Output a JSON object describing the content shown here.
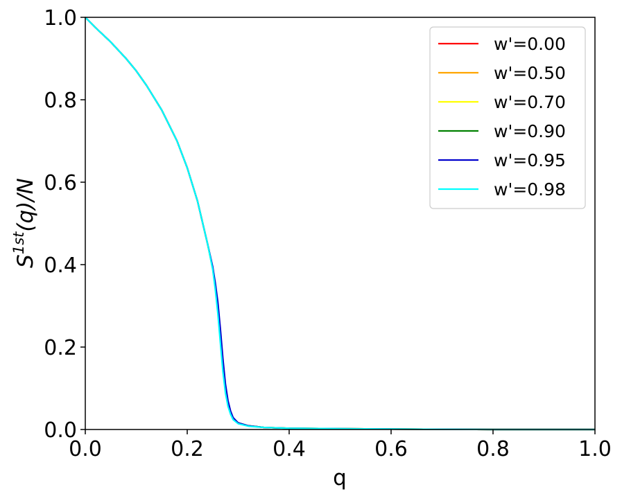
{
  "chart_data": {
    "type": "line",
    "xlabel": "q",
    "ylabel": {
      "base": "S",
      "sup": "1st",
      "rest": "(q)/N"
    },
    "xlim": [
      0.0,
      1.0
    ],
    "ylim": [
      0.0,
      1.0
    ],
    "xticks": [
      "0.0",
      "0.2",
      "0.4",
      "0.6",
      "0.8",
      "1.0"
    ],
    "yticks": [
      "0.0",
      "0.2",
      "0.4",
      "0.6",
      "0.8",
      "1.0"
    ],
    "grid": false,
    "legend_position": "top-right",
    "series": [
      {
        "name": "w'=0.00",
        "color": "#ff0000",
        "x": [
          0.0,
          0.02,
          0.05,
          0.08,
          0.1,
          0.12,
          0.15,
          0.18,
          0.2,
          0.22,
          0.24,
          0.25,
          0.255,
          0.26,
          0.265,
          0.27,
          0.275,
          0.28,
          0.285,
          0.29,
          0.3,
          0.32,
          0.35,
          0.4,
          0.5,
          0.6,
          0.8,
          1.0
        ],
        "y": [
          1.0,
          0.975,
          0.94,
          0.9,
          0.87,
          0.835,
          0.775,
          0.7,
          0.635,
          0.555,
          0.45,
          0.39,
          0.345,
          0.29,
          0.22,
          0.15,
          0.095,
          0.06,
          0.04,
          0.026,
          0.015,
          0.009,
          0.005,
          0.003,
          0.002,
          0.001,
          0.0,
          0.0
        ]
      },
      {
        "name": "w'=0.50",
        "color": "#ffa500",
        "x": [
          0.0,
          0.02,
          0.05,
          0.08,
          0.1,
          0.12,
          0.15,
          0.18,
          0.2,
          0.22,
          0.24,
          0.25,
          0.255,
          0.26,
          0.265,
          0.27,
          0.275,
          0.28,
          0.285,
          0.29,
          0.3,
          0.32,
          0.35,
          0.4,
          0.5,
          0.6,
          0.8,
          1.0
        ],
        "y": [
          1.0,
          0.975,
          0.94,
          0.9,
          0.87,
          0.835,
          0.775,
          0.7,
          0.635,
          0.555,
          0.45,
          0.39,
          0.345,
          0.292,
          0.222,
          0.152,
          0.097,
          0.061,
          0.041,
          0.027,
          0.015,
          0.009,
          0.005,
          0.003,
          0.002,
          0.001,
          0.0,
          0.0
        ]
      },
      {
        "name": "w'=0.70",
        "color": "#ffff00",
        "x": [
          0.0,
          0.02,
          0.05,
          0.08,
          0.1,
          0.12,
          0.15,
          0.18,
          0.2,
          0.22,
          0.24,
          0.25,
          0.255,
          0.26,
          0.265,
          0.27,
          0.275,
          0.28,
          0.285,
          0.29,
          0.3,
          0.32,
          0.35,
          0.4,
          0.5,
          0.6,
          0.8,
          1.0
        ],
        "y": [
          1.0,
          0.975,
          0.94,
          0.9,
          0.87,
          0.835,
          0.775,
          0.7,
          0.635,
          0.555,
          0.45,
          0.39,
          0.347,
          0.295,
          0.226,
          0.156,
          0.1,
          0.063,
          0.042,
          0.027,
          0.015,
          0.009,
          0.005,
          0.003,
          0.002,
          0.001,
          0.0,
          0.0
        ]
      },
      {
        "name": "w'=0.90",
        "color": "#008000",
        "x": [
          0.0,
          0.02,
          0.05,
          0.08,
          0.1,
          0.12,
          0.15,
          0.18,
          0.2,
          0.22,
          0.24,
          0.25,
          0.255,
          0.26,
          0.265,
          0.27,
          0.275,
          0.28,
          0.285,
          0.29,
          0.3,
          0.32,
          0.35,
          0.4,
          0.5,
          0.6,
          0.8,
          1.0
        ],
        "y": [
          1.0,
          0.975,
          0.94,
          0.9,
          0.87,
          0.835,
          0.775,
          0.7,
          0.635,
          0.555,
          0.45,
          0.392,
          0.35,
          0.3,
          0.232,
          0.162,
          0.104,
          0.066,
          0.043,
          0.028,
          0.016,
          0.009,
          0.005,
          0.003,
          0.002,
          0.001,
          0.0,
          0.0
        ]
      },
      {
        "name": "w'=0.95",
        "color": "#0000cd",
        "x": [
          0.0,
          0.02,
          0.05,
          0.08,
          0.1,
          0.12,
          0.15,
          0.18,
          0.2,
          0.22,
          0.24,
          0.25,
          0.255,
          0.26,
          0.265,
          0.27,
          0.275,
          0.28,
          0.285,
          0.29,
          0.3,
          0.32,
          0.35,
          0.4,
          0.5,
          0.6,
          0.8,
          1.0
        ],
        "y": [
          1.0,
          0.975,
          0.94,
          0.9,
          0.87,
          0.835,
          0.775,
          0.7,
          0.635,
          0.555,
          0.45,
          0.395,
          0.356,
          0.31,
          0.245,
          0.172,
          0.11,
          0.07,
          0.045,
          0.029,
          0.016,
          0.009,
          0.005,
          0.003,
          0.002,
          0.001,
          0.0,
          0.0
        ]
      },
      {
        "name": "w'=0.98",
        "color": "#00ffff",
        "x": [
          0.0,
          0.02,
          0.05,
          0.08,
          0.1,
          0.12,
          0.15,
          0.18,
          0.2,
          0.22,
          0.24,
          0.25,
          0.255,
          0.26,
          0.265,
          0.27,
          0.275,
          0.28,
          0.285,
          0.29,
          0.3,
          0.32,
          0.35,
          0.4,
          0.5,
          0.6,
          0.8,
          1.0
        ],
        "y": [
          1.0,
          0.975,
          0.94,
          0.9,
          0.87,
          0.835,
          0.775,
          0.7,
          0.635,
          0.555,
          0.45,
          0.388,
          0.34,
          0.282,
          0.21,
          0.14,
          0.088,
          0.056,
          0.037,
          0.024,
          0.014,
          0.008,
          0.005,
          0.003,
          0.002,
          0.001,
          0.0,
          0.0
        ]
      }
    ]
  }
}
